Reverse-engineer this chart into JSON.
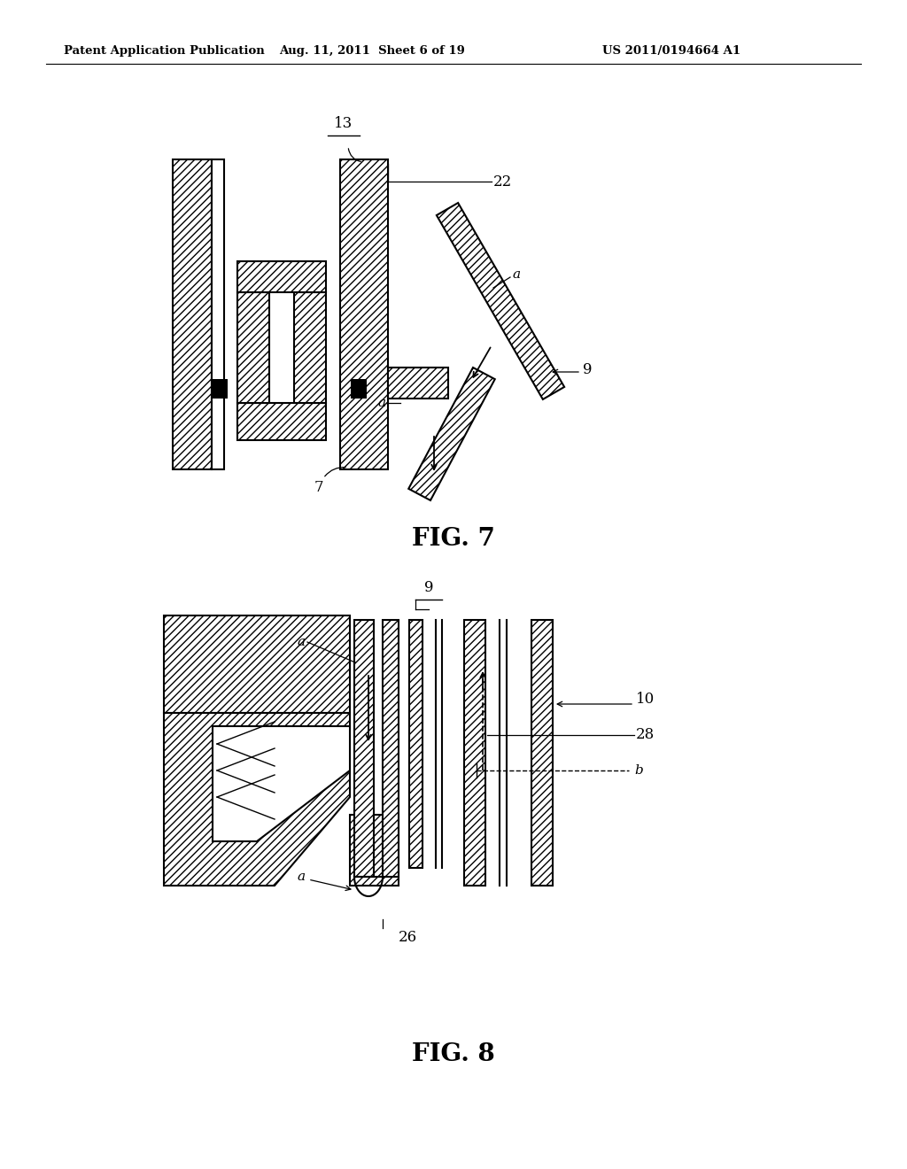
{
  "background_color": "#ffffff",
  "header_text": "Patent Application Publication",
  "header_date": "Aug. 11, 2011  Sheet 6 of 19",
  "header_patent": "US 2011/0194664 A1",
  "fig7_label": "FIG. 7",
  "fig8_label": "FIG. 8",
  "black": "#000000",
  "lw": 1.5,
  "hatch": "////"
}
